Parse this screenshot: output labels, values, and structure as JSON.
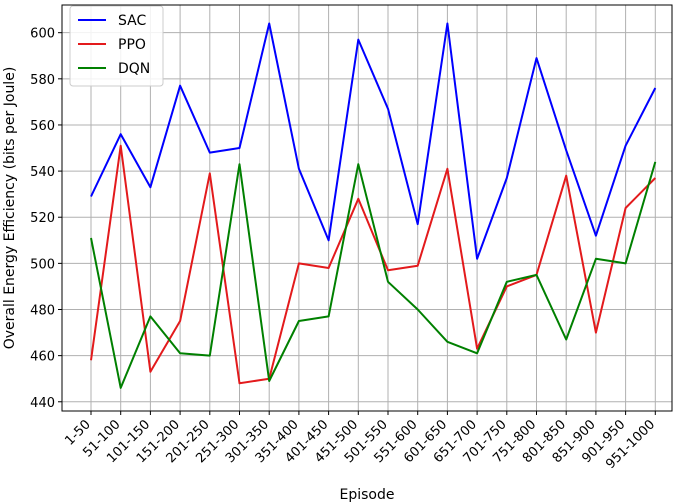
{
  "chart_data": {
    "type": "line",
    "title": "",
    "xlabel": "Episode",
    "ylabel": "Overall Energy Efficiency (bits per Joule)",
    "categories": [
      "1-50",
      "51-100",
      "101-150",
      "151-200",
      "201-250",
      "251-300",
      "301-350",
      "351-400",
      "401-450",
      "451-500",
      "501-550",
      "551-600",
      "601-650",
      "651-700",
      "701-750",
      "751-800",
      "801-850",
      "851-900",
      "901-950",
      "951-1000"
    ],
    "ylim": [
      436,
      612
    ],
    "yticks": [
      440,
      460,
      480,
      500,
      520,
      540,
      560,
      580,
      600
    ],
    "grid": true,
    "legend_position": "top-left",
    "series": [
      {
        "name": "SAC",
        "color": "#0000ff",
        "values": [
          529,
          556,
          533,
          577,
          548,
          550,
          604,
          541,
          510,
          597,
          567,
          517,
          604,
          502,
          537,
          589,
          549,
          512,
          551,
          576
        ]
      },
      {
        "name": "PPO",
        "color": "#e31a1c",
        "values": [
          458,
          551,
          453,
          475,
          539,
          448,
          450,
          500,
          498,
          528,
          497,
          499,
          541,
          463,
          490,
          495,
          538,
          470,
          524,
          537
        ]
      },
      {
        "name": "DQN",
        "color": "#008000",
        "values": [
          511,
          446,
          477,
          461,
          460,
          543,
          449,
          475,
          477,
          543,
          492,
          480,
          466,
          461,
          492,
          495,
          467,
          502,
          500,
          544
        ]
      }
    ]
  }
}
